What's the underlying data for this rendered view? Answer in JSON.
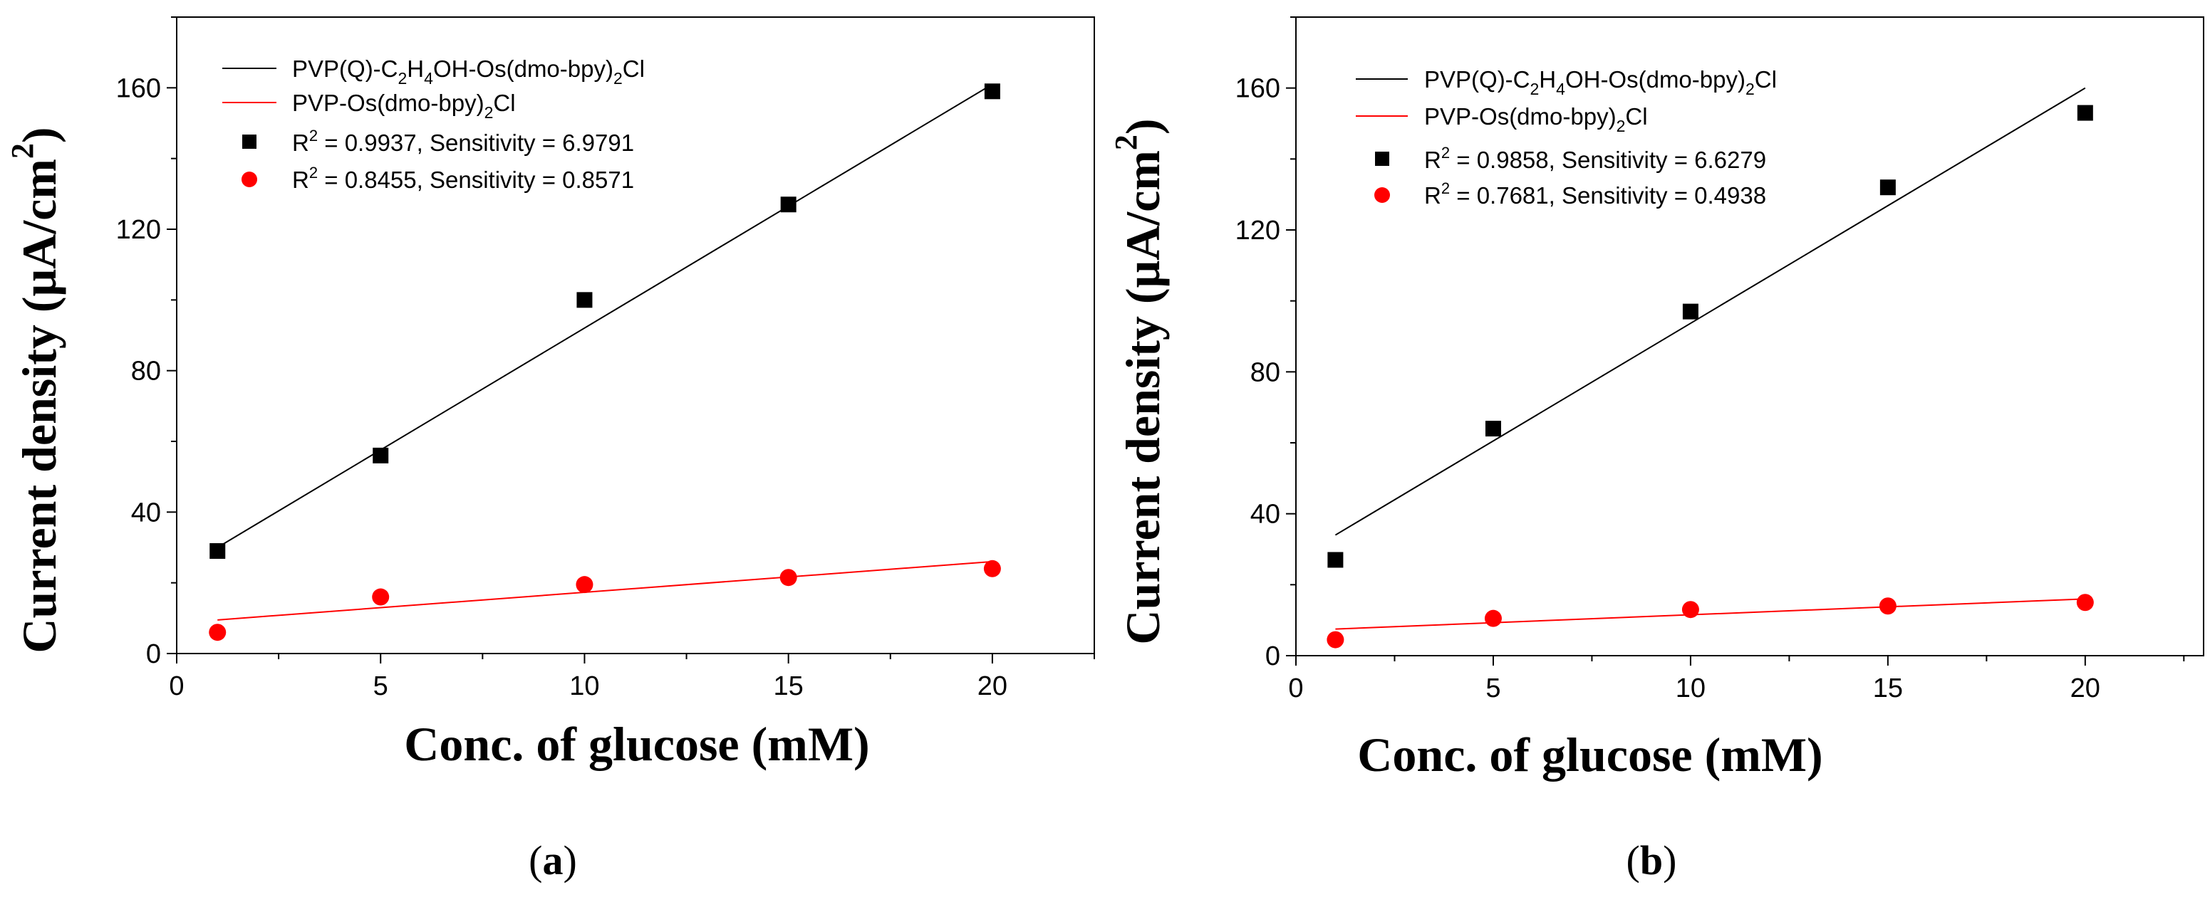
{
  "chart_data": [
    {
      "type": "scatter",
      "panel_label": "a",
      "xlabel": "Conc. of glucose (mM)",
      "ylabel": "Current density (μA/cm²)",
      "ylabel_main": "Current density (μA/cm",
      "ylabel_sup": "2",
      "ylabel_close": ")",
      "xlim": [
        0,
        22.5
      ],
      "ylim": [
        0,
        180
      ],
      "xticks": [
        0,
        5,
        10,
        15,
        20
      ],
      "yticks": [
        0,
        40,
        80,
        120,
        160
      ],
      "legend_position": "top-left",
      "series": [
        {
          "name": "PVP(Q)-C2H4OH-Os(dmo-bpy)2Cl",
          "label_parts": {
            "a": "PVP(Q)-C",
            "s1": "2",
            "b": "H",
            "s2": "4",
            "c": "OH-Os(dmo-bpy)",
            "s3": "2",
            "d": "Cl"
          },
          "color": "#000000",
          "marker": "square",
          "x": [
            1,
            5,
            10,
            15,
            20
          ],
          "y": [
            29,
            56,
            100,
            127,
            159
          ],
          "fit": {
            "x": [
              1,
              20
            ],
            "y": [
              30,
              161
            ]
          },
          "fit_label": "R² = 0.9937, Sensitivity = 6.9791",
          "fit_label_parts": {
            "pre": "R",
            "sup": "2",
            "post": " = 0.9937, Sensitivity = 6.9791"
          }
        },
        {
          "name": "PVP-Os(dmo-bpy)2Cl",
          "label_parts": {
            "a": "PVP-Os(dmo-bpy)",
            "s1": "2",
            "b": "Cl"
          },
          "color": "#ff0000",
          "marker": "circle",
          "x": [
            1,
            5,
            10,
            15,
            20
          ],
          "y": [
            6,
            16,
            19.5,
            21.5,
            24
          ],
          "fit": {
            "x": [
              1,
              20
            ],
            "y": [
              9.5,
              26
            ]
          },
          "fit_label": "R² = 0.8455, Sensitivity = 0.8571",
          "fit_label_parts": {
            "pre": "R",
            "sup": "2",
            "post": " = 0.8455, Sensitivity = 0.8571"
          }
        }
      ]
    },
    {
      "type": "scatter",
      "panel_label": "b",
      "xlabel": "Conc. of glucose (mM)",
      "ylabel": "Current density (μA/cm²)",
      "ylabel_main": "Current density (μA/cm",
      "ylabel_sup": "2",
      "ylabel_close": ")",
      "xlim": [
        0,
        23
      ],
      "ylim": [
        0,
        180
      ],
      "xticks": [
        0,
        5,
        10,
        15,
        20
      ],
      "yticks": [
        0,
        40,
        80,
        120,
        160
      ],
      "legend_position": "top-left",
      "series": [
        {
          "name": "PVP(Q)-C2H4OH-Os(dmo-bpy)2Cl",
          "label_parts": {
            "a": "PVP(Q)-C",
            "s1": "2",
            "b": "H",
            "s2": "4",
            "c": "OH-Os(dmo-bpy)",
            "s3": "2",
            "d": "Cl"
          },
          "color": "#000000",
          "marker": "square",
          "x": [
            1,
            5,
            10,
            15,
            20
          ],
          "y": [
            27,
            64,
            97,
            132,
            153
          ],
          "fit": {
            "x": [
              1,
              20
            ],
            "y": [
              34,
              160
            ]
          },
          "fit_label": "R² = 0.9858, Sensitivity = 6.6279",
          "fit_label_parts": {
            "pre": "R",
            "sup": "2",
            "post": " = 0.9858, Sensitivity = 6.6279"
          }
        },
        {
          "name": "PVP-Os(dmo-bpy)2Cl",
          "label_parts": {
            "a": "PVP-Os(dmo-bpy)",
            "s1": "2",
            "b": "Cl"
          },
          "color": "#ff0000",
          "marker": "circle",
          "x": [
            1,
            5,
            10,
            15,
            20
          ],
          "y": [
            4.5,
            10.5,
            13,
            14,
            15
          ],
          "fit": {
            "x": [
              1,
              20
            ],
            "y": [
              7.5,
              16
            ]
          },
          "fit_label": "R² = 0.7681, Sensitivity = 0.4938",
          "fit_label_parts": {
            "pre": "R",
            "sup": "2",
            "post": " = 0.7681, Sensitivity = 0.4938"
          }
        }
      ]
    }
  ]
}
